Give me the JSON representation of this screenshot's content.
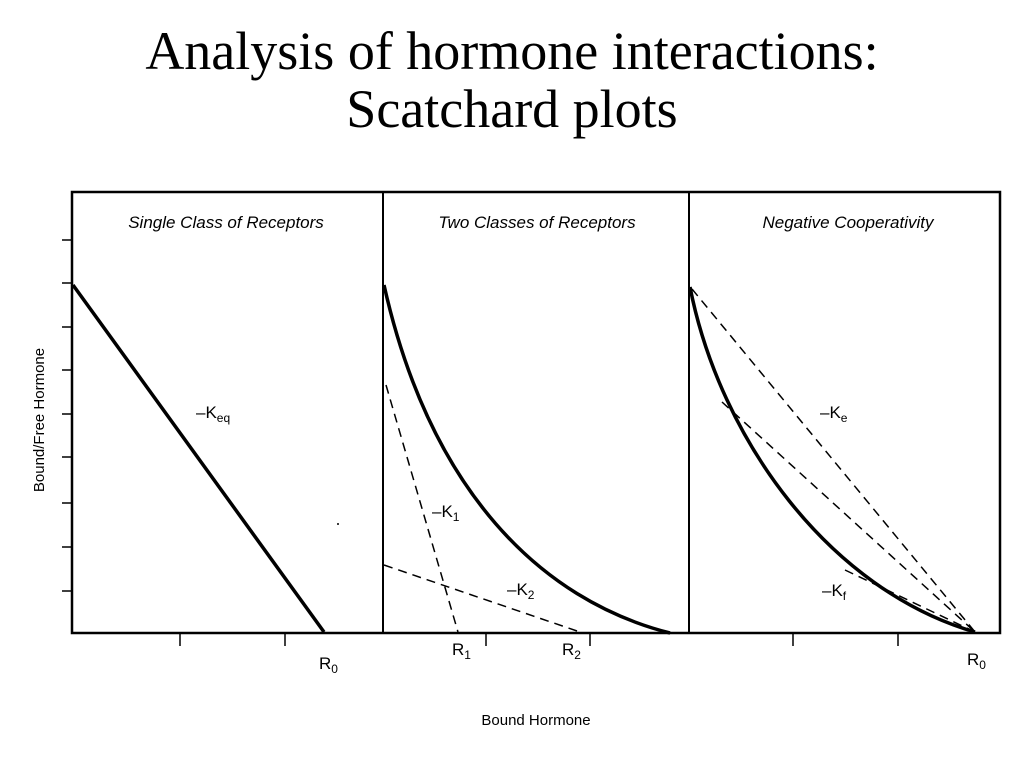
{
  "slide": {
    "title_line1": "Analysis of hormone interactions:",
    "title_line2": "Scatchard plots"
  },
  "figure": {
    "x_axis_label": "Bound Hormone",
    "y_axis_label": "Bound/Free Hormone",
    "panels": [
      {
        "title": "Single Class of Receptors",
        "labels": [
          {
            "main": "–K",
            "sub": "eq"
          },
          {
            "main": "R",
            "sub": "0"
          }
        ]
      },
      {
        "title": "Two Classes of Receptors",
        "labels": [
          {
            "main": "–K",
            "sub": "1"
          },
          {
            "main": "–K",
            "sub": "2"
          },
          {
            "main": "R",
            "sub": "1"
          },
          {
            "main": "R",
            "sub": "2"
          }
        ]
      },
      {
        "title": "Negative Cooperativity",
        "labels": [
          {
            "main": "–K",
            "sub": "e"
          },
          {
            "main": "–K",
            "sub": "f"
          },
          {
            "main": "R",
            "sub": "0"
          }
        ]
      }
    ]
  }
}
